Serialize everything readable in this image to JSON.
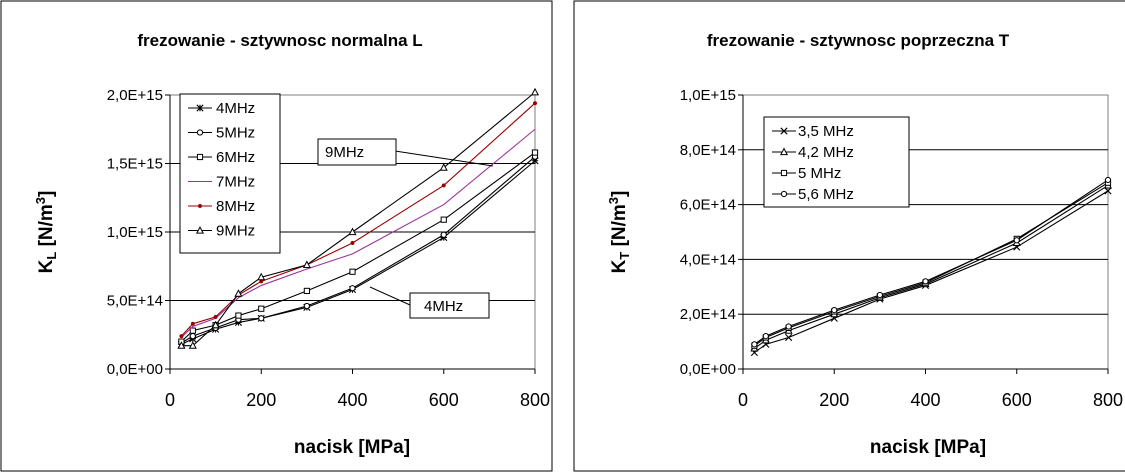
{
  "chart_data": [
    {
      "type": "line",
      "title": "frezowanie -  sztywnosc normalna  L",
      "xlabel": "nacisk [MPa]",
      "ylabel_main": "K",
      "ylabel_sub": "L",
      "ylabel_unit": " [N/m",
      "ylabel_sup": "3",
      "ylabel_close": "]",
      "xlim": [
        0,
        800
      ],
      "ylim": [
        0,
        2000000000000000.0
      ],
      "xticks": [
        "0",
        "200",
        "400",
        "600",
        "800"
      ],
      "xtick_values": [
        0,
        200,
        400,
        600,
        800
      ],
      "yticks": [
        "0,0E+00",
        "5,0E+14",
        "1,0E+15",
        "1,5E+15",
        "2,0E+15"
      ],
      "ytick_values": [
        0,
        500000000000000.0,
        1000000000000000.0,
        1500000000000000.0,
        2000000000000000.0
      ],
      "grid": "horizontal",
      "legend_position": "top-left",
      "x": [
        25,
        50,
        100,
        150,
        200,
        300,
        400,
        600,
        800
      ],
      "series": [
        {
          "name": "4MHz",
          "marker": "star",
          "color": "#000000",
          "values": [
            180000000000000.0,
            220000000000000.0,
            290000000000000.0,
            340000000000000.0,
            370000000000000.0,
            450000000000000.0,
            580000000000000.0,
            960000000000000.0,
            1520000000000000.0
          ]
        },
        {
          "name": "5MHz",
          "marker": "circle",
          "color": "#000000",
          "values": [
            190000000000000.0,
            240000000000000.0,
            300000000000000.0,
            360000000000000.0,
            370000000000000.0,
            460000000000000.0,
            590000000000000.0,
            980000000000000.0,
            1550000000000000.0
          ]
        },
        {
          "name": "6MHz",
          "marker": "square",
          "color": "#000000",
          "values": [
            200000000000000.0,
            280000000000000.0,
            320000000000000.0,
            390000000000000.0,
            440000000000000.0,
            570000000000000.0,
            710000000000000.0,
            1090000000000000.0,
            1580000000000000.0
          ]
        },
        {
          "name": "7MHz",
          "marker": "none",
          "color": "#993399",
          "values": [
            230000000000000.0,
            310000000000000.0,
            370000000000000.0,
            520000000000000.0,
            610000000000000.0,
            730000000000000.0,
            840000000000000.0,
            1200000000000000.0,
            1750000000000000.0
          ]
        },
        {
          "name": "8MHz",
          "marker": "dot",
          "color": "#990000",
          "values": [
            240000000000000.0,
            330000000000000.0,
            380000000000000.0,
            540000000000000.0,
            640000000000000.0,
            760000000000000.0,
            920000000000000.0,
            1340000000000000.0,
            1940000000000000.0
          ]
        },
        {
          "name": "9MHz",
          "marker": "triangle",
          "color": "#000000",
          "values": [
            170000000000000.0,
            170000000000000.0,
            320000000000000.0,
            550000000000000.0,
            670000000000000.0,
            760000000000000.0,
            1000000000000000.0,
            1470000000000000.0,
            2020000000000000.0
          ]
        }
      ],
      "annotations": [
        {
          "text": "9MHz",
          "x": 600,
          "y": 1470000000000000.0
        },
        {
          "text": "4MHz",
          "x": 400,
          "y": 580000000000000.0
        }
      ]
    },
    {
      "type": "line",
      "title": "frezowanie - sztywnosc poprzeczna  T",
      "xlabel": "nacisk [MPa]",
      "ylabel_main": "K",
      "ylabel_sub": "T",
      "ylabel_unit": " [N/m",
      "ylabel_sup": "3",
      "ylabel_close": "]",
      "xlim": [
        0,
        800
      ],
      "ylim": [
        0,
        1000000000000000.0
      ],
      "xticks": [
        "0",
        "200",
        "400",
        "600",
        "800"
      ],
      "xtick_values": [
        0,
        200,
        400,
        600,
        800
      ],
      "yticks": [
        "0,0E+00",
        "2,0E+14",
        "4,0E+14",
        "6,0E+14",
        "8,0E+14",
        "1,0E+15"
      ],
      "ytick_values": [
        0,
        200000000000000.0,
        400000000000000.0,
        600000000000000.0,
        800000000000000.0,
        1000000000000000.0
      ],
      "grid": "horizontal",
      "legend_position": "top-left",
      "x": [
        25,
        50,
        100,
        200,
        300,
        400,
        600,
        800
      ],
      "series": [
        {
          "name": "3,5 MHz",
          "marker": "x",
          "color": "#000000",
          "values": [
            60000000000000.0,
            90000000000000.0,
            115000000000000.0,
            185000000000000.0,
            255000000000000.0,
            305000000000000.0,
            445000000000000.0,
            650000000000000.0
          ]
        },
        {
          "name": "4,2 MHz",
          "marker": "triangle",
          "color": "#000000",
          "values": [
            75000000000000.0,
            105000000000000.0,
            140000000000000.0,
            200000000000000.0,
            260000000000000.0,
            310000000000000.0,
            460000000000000.0,
            670000000000000.0
          ]
        },
        {
          "name": "5 MHz",
          "marker": "square",
          "color": "#000000",
          "values": [
            85000000000000.0,
            115000000000000.0,
            150000000000000.0,
            210000000000000.0,
            265000000000000.0,
            315000000000000.0,
            475000000000000.0,
            680000000000000.0
          ]
        },
        {
          "name": "5,6 MHz",
          "marker": "circle",
          "color": "#000000",
          "values": [
            90000000000000.0,
            120000000000000.0,
            155000000000000.0,
            215000000000000.0,
            270000000000000.0,
            320000000000000.0,
            470000000000000.0,
            690000000000000.0
          ]
        }
      ]
    }
  ]
}
